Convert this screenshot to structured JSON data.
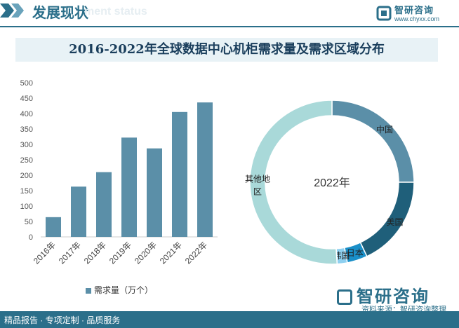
{
  "header": {
    "section_title": "发展现状",
    "ghost_text": "ment status",
    "brand_name": "智研咨询",
    "brand_url": "www.chyxx.com"
  },
  "chart_title": "2016-2022年全球数据中心机柜需求量及需求区域分布",
  "chart_data": [
    {
      "type": "bar",
      "categories": [
        "2016年",
        "2017年",
        "2018年",
        "2019年",
        "2020年",
        "2021年",
        "2022年"
      ],
      "series": [
        {
          "name": "需求量（万个）",
          "values": [
            64,
            163,
            210,
            322,
            287,
            405,
            436
          ]
        }
      ],
      "ylim": [
        0,
        500
      ],
      "yticks": [
        0,
        50,
        100,
        150,
        200,
        250,
        300,
        350,
        400,
        450,
        500
      ],
      "color": "#5b8fa8",
      "legend": "bottom"
    },
    {
      "type": "pie",
      "center_label": "2022年",
      "slices": [
        {
          "label": "中国",
          "value": 25,
          "color": "#5b8fa8"
        },
        {
          "label": "美国",
          "value": 18,
          "color": "#1f5f7a"
        },
        {
          "label": "日本",
          "value": 4,
          "color": "#1a8fc8"
        },
        {
          "label": "韩国",
          "value": 2,
          "color": "#8fd0f0"
        },
        {
          "label": "其他地区",
          "value": 51,
          "color": "#a9d9d9"
        }
      ]
    }
  ],
  "legend_label": "需求量（万个）",
  "footer": {
    "left_text": "精品报告 · 专项定制 · 品质服务",
    "source": "资料来源：智研咨询整理",
    "logo_text": "智研咨询"
  }
}
